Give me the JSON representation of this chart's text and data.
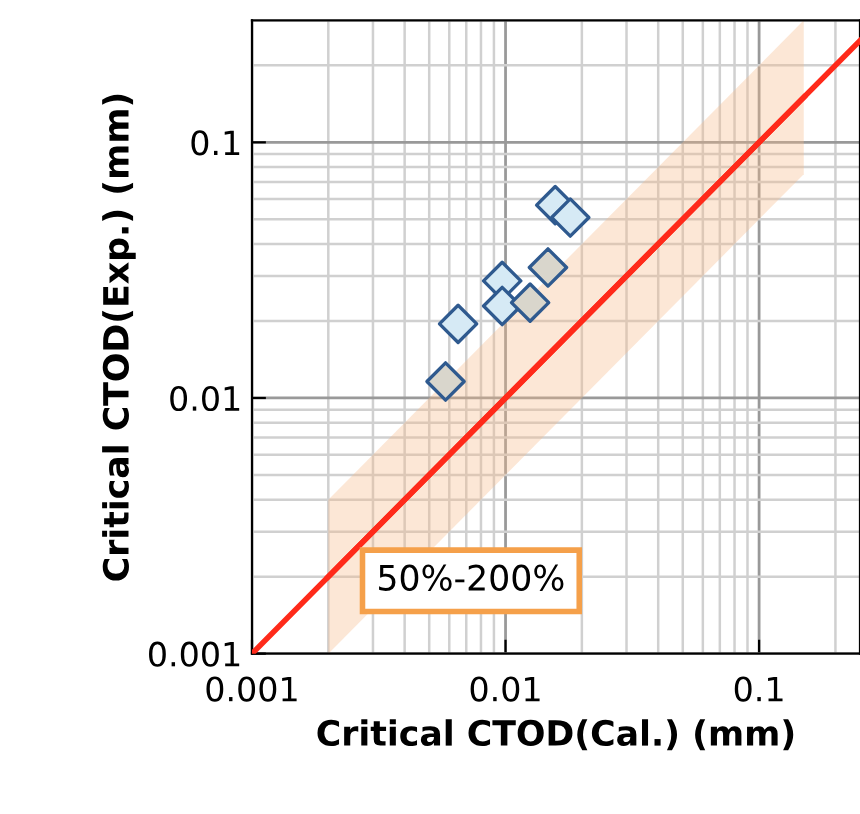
{
  "chart_data": {
    "type": "scatter",
    "xlabel": "Critical CTOD(Cal.) (mm)",
    "ylabel": "Critical CTOD(Exp.) (mm)",
    "series": [
      {
        "color": "#d6eaf5",
        "x": [
          0.0157,
          0.018,
          0.0097,
          0.0097,
          0.0065
        ],
        "values": [
          0.0568,
          0.0508,
          0.0287,
          0.0229,
          0.0195
        ]
      },
      {
        "color": "#d9d6cc",
        "x": [
          0.0147,
          0.0125,
          0.0058
        ],
        "values": [
          0.0324,
          0.0236,
          0.0116
        ]
      },
      {
        "type": "line",
        "marker": "none",
        "color": "#ff2a1a",
        "x": [
          0.001,
          0.25
        ],
        "values": [
          0.001,
          0.25
        ]
      },
      {
        "type": "line",
        "marker": "none",
        "color": "#ff2a1a",
        "x": [
          0.002,
          0.15
        ],
        "values": [
          0.002,
          0.15
        ],
        "lower": [
          0.001,
          0.075
        ],
        "upper": [
          0.004,
          0.3
        ]
      }
    ],
    "annotations": [
      "50%-200%"
    ],
    "marker": "diamond",
    "log": "xy",
    "grid": true,
    "xlim": [
      0.001,
      0.25
    ],
    "ylim": [
      0.001,
      0.3
    ],
    "xticks": [
      0.001,
      0.01,
      0.1
    ],
    "yticks": [
      0.001,
      0.01,
      0.1
    ]
  }
}
